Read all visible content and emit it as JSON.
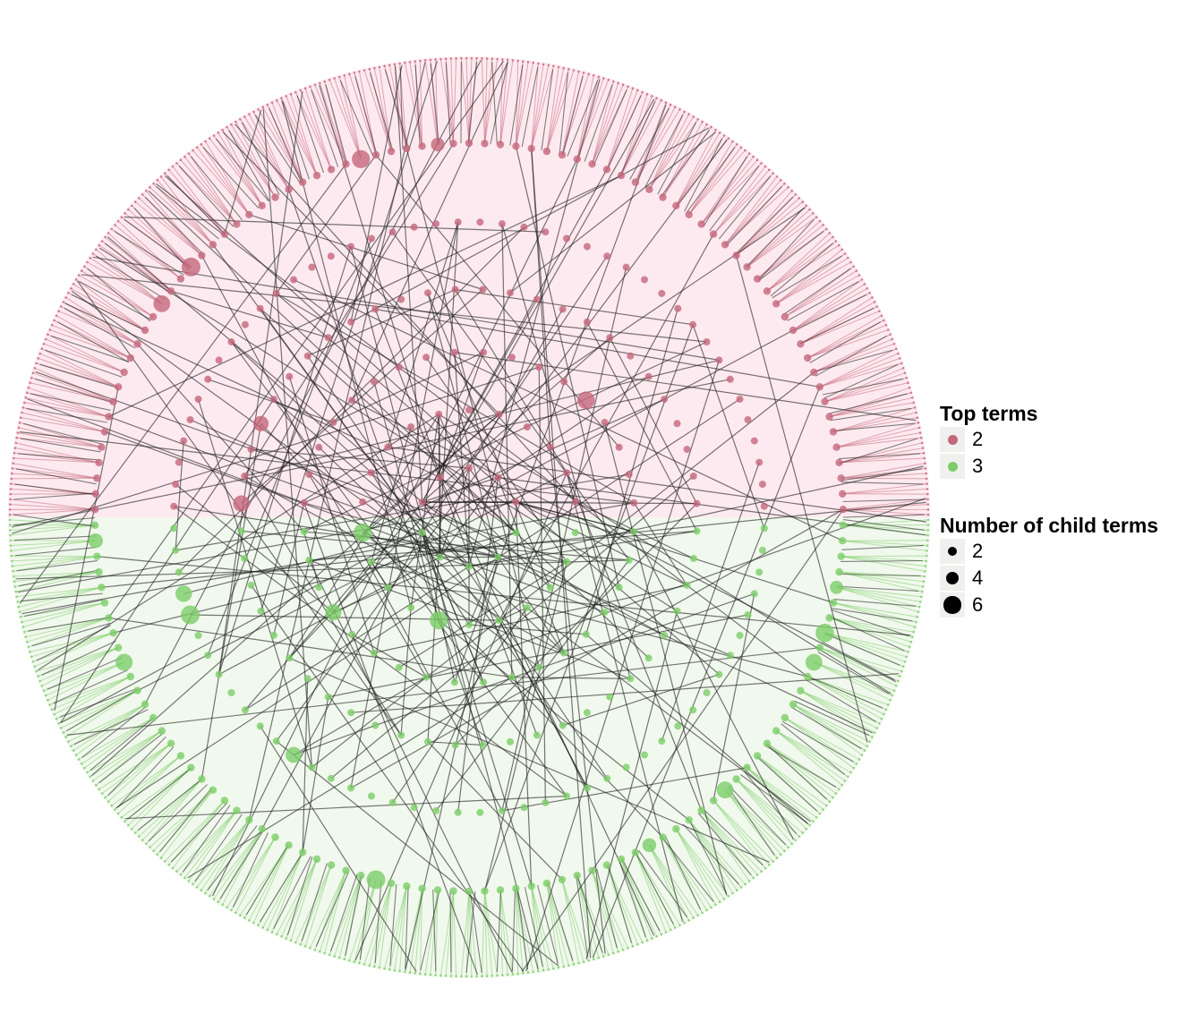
{
  "diagram": {
    "type": "circular-hierarchy",
    "groups": [
      {
        "id": "2",
        "half": "top",
        "node_color": "#c4677a",
        "bg_color": "#fdeaf0",
        "edge_tint": "#c4677a"
      },
      {
        "id": "3",
        "half": "bottom",
        "node_color": "#7ccd68",
        "bg_color": "#f1f8ed",
        "edge_tint": "#7ccd68"
      }
    ],
    "edge_color": "#1e1e1e"
  },
  "legend": {
    "color_title": "Top terms",
    "color_items": [
      {
        "label": "2",
        "color": "#c4677a"
      },
      {
        "label": "3",
        "color": "#7ccd68"
      }
    ],
    "size_title": "Number of child terms",
    "size_items": [
      {
        "label": "2",
        "value": 2
      },
      {
        "label": "4",
        "value": 4
      },
      {
        "label": "6",
        "value": 6
      }
    ]
  }
}
